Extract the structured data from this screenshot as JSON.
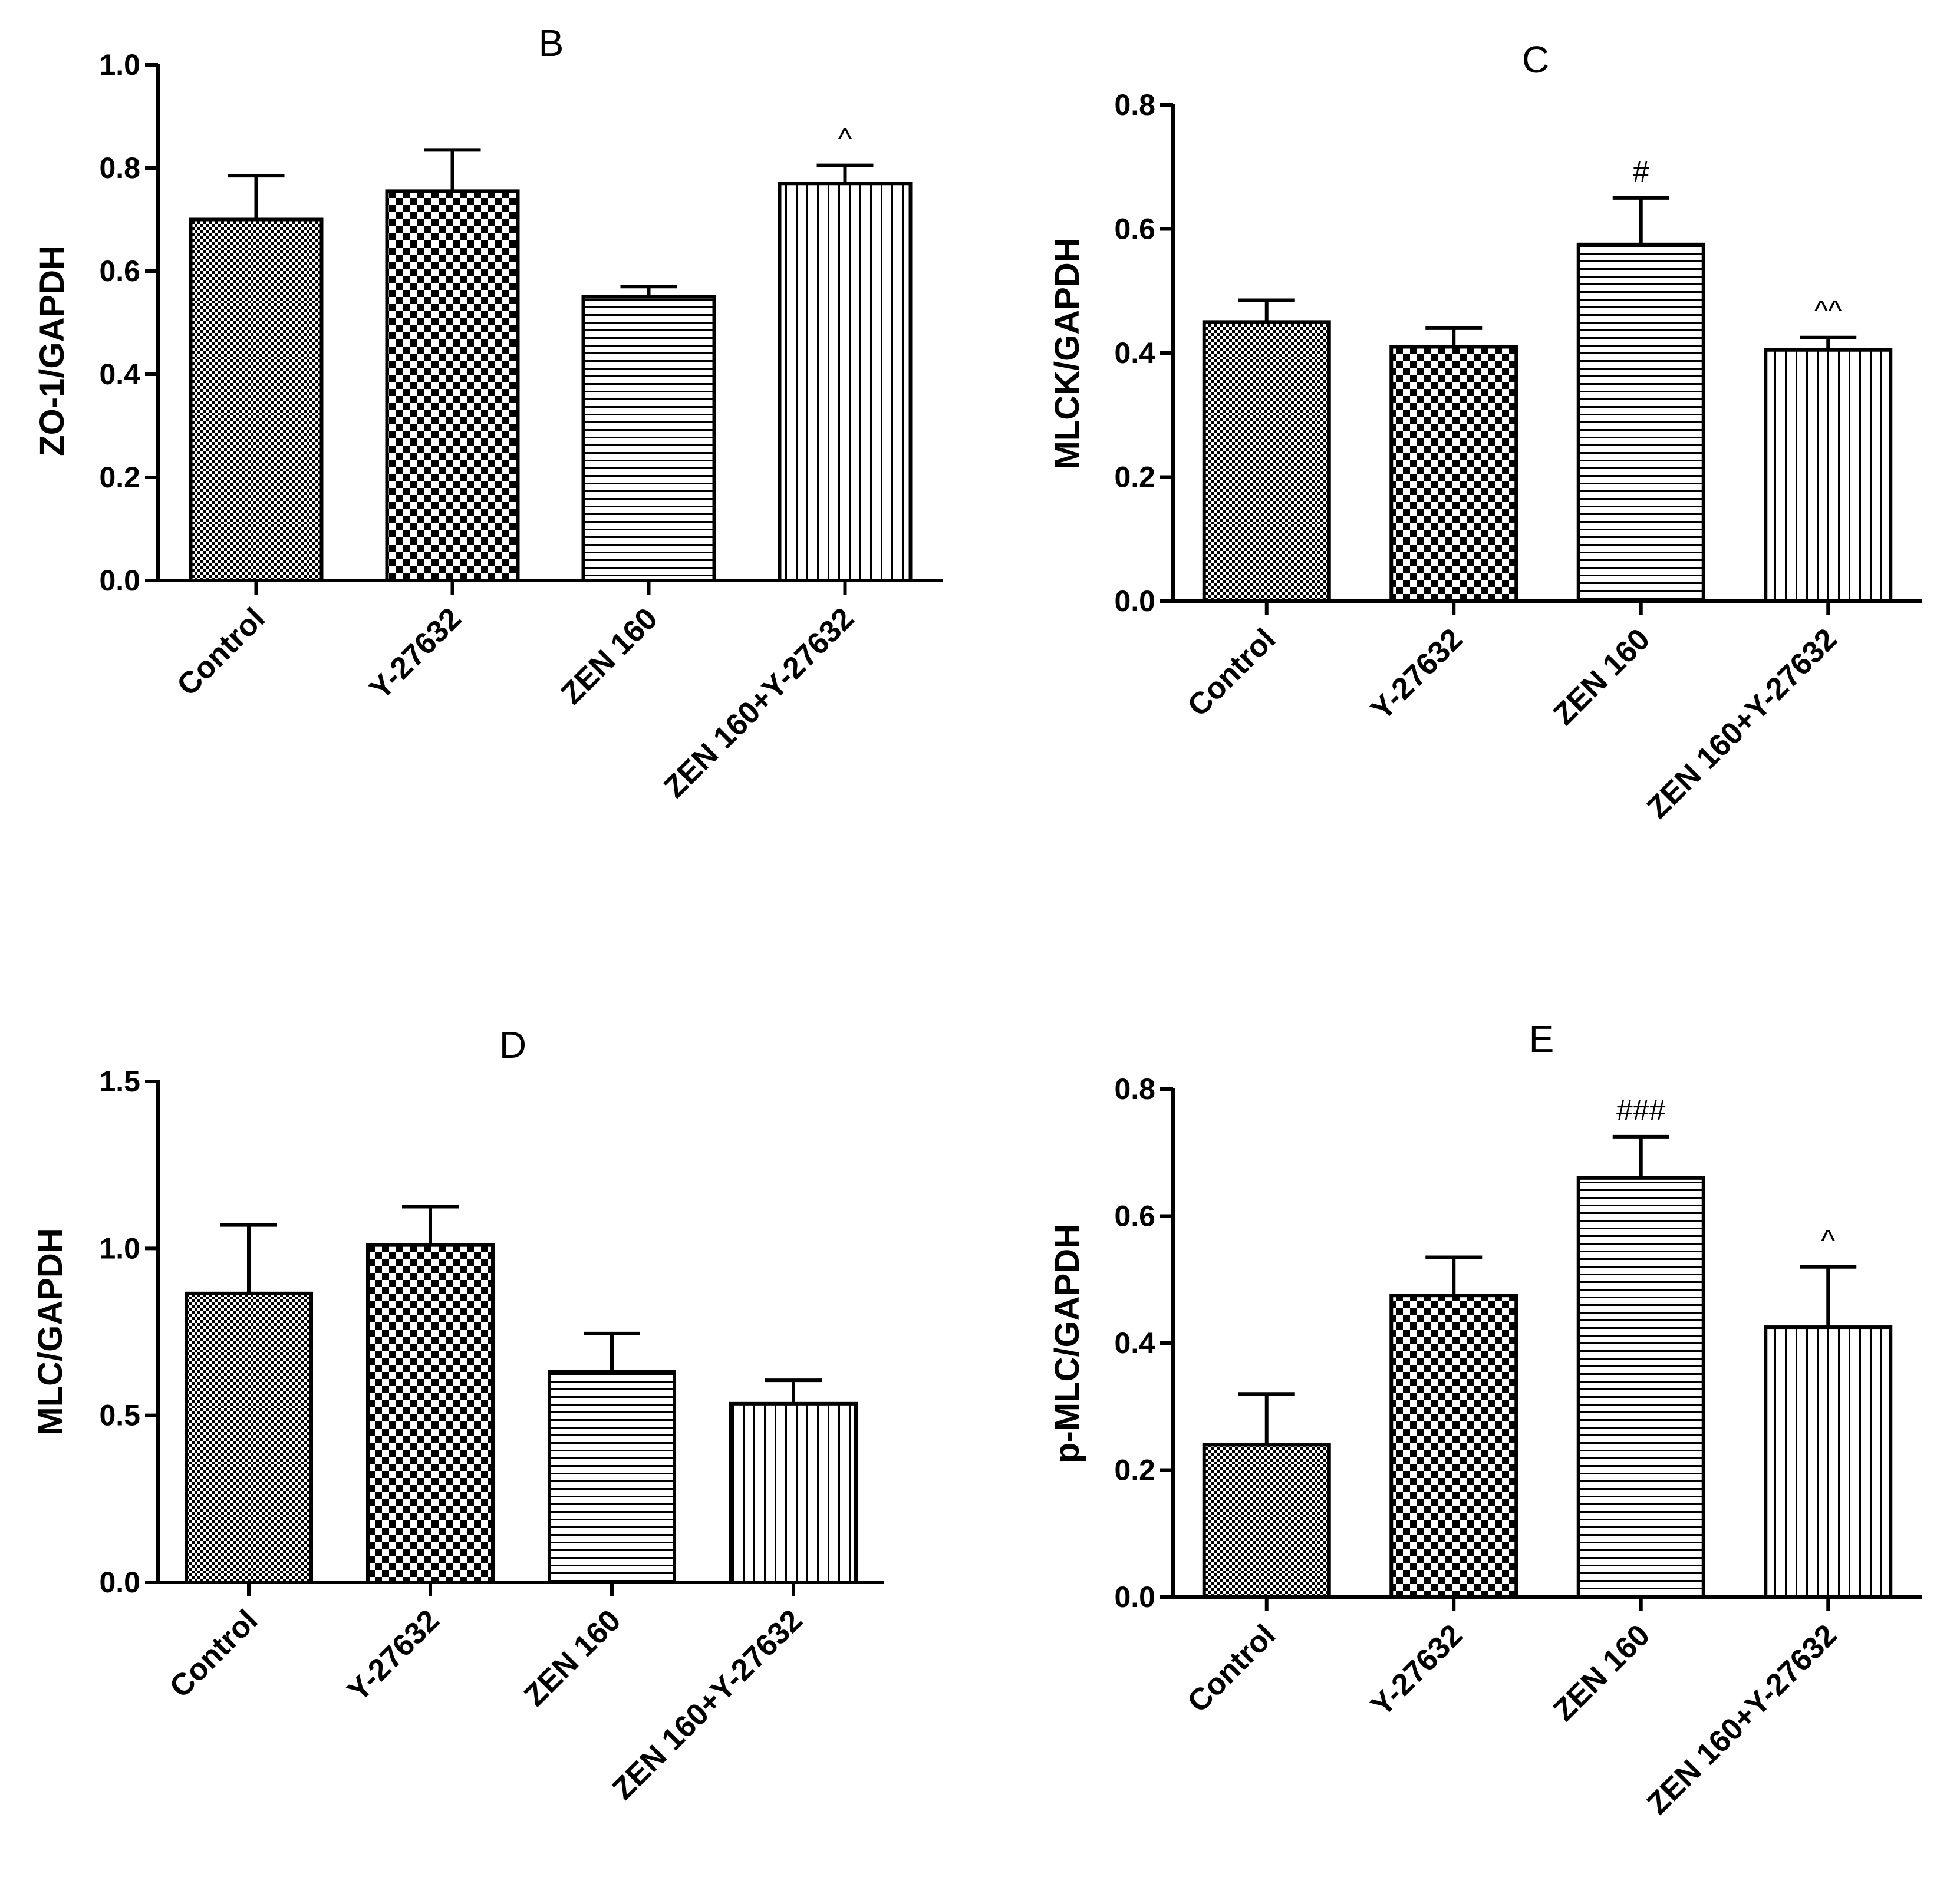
{
  "chart_data": [
    {
      "panel": "B",
      "type": "bar",
      "title": "B",
      "ylabel": "ZO-1/GAPDH",
      "xlabel": "",
      "categories": [
        "Control",
        "Y-27632",
        "ZEN 160",
        "ZEN 160+Y-27632"
      ],
      "values": [
        0.7,
        0.755,
        0.55,
        0.77
      ],
      "errors": [
        0.085,
        0.08,
        0.02,
        0.035
      ],
      "annotations": [
        "",
        "",
        "",
        "^"
      ],
      "patterns": [
        "fine-check",
        "check",
        "hlines",
        "vlines"
      ],
      "ylim": [
        0,
        1.0
      ],
      "yticks": [
        0.0,
        0.2,
        0.4,
        0.6,
        0.8,
        1.0
      ],
      "ytick_labels": [
        "0.0",
        "0.2",
        "0.4",
        "0.6",
        "0.8",
        "1.0"
      ],
      "grid": false
    },
    {
      "panel": "C",
      "type": "bar",
      "title": "C",
      "ylabel": "MLCK/GAPDH",
      "xlabel": "",
      "categories": [
        "Control",
        "Y-27632",
        "ZEN 160",
        "ZEN 160+Y-27632"
      ],
      "values": [
        0.45,
        0.41,
        0.575,
        0.405
      ],
      "errors": [
        0.035,
        0.03,
        0.075,
        0.02
      ],
      "annotations": [
        "",
        "",
        "#",
        "^^"
      ],
      "patterns": [
        "fine-check",
        "check",
        "hlines",
        "vlines"
      ],
      "ylim": [
        0,
        0.8
      ],
      "yticks": [
        0.0,
        0.2,
        0.4,
        0.6,
        0.8
      ],
      "ytick_labels": [
        "0.0",
        "0.2",
        "0.4",
        "0.6",
        "0.8"
      ],
      "grid": false
    },
    {
      "panel": "D",
      "type": "bar",
      "title": "D",
      "ylabel": "MLC/GAPDH",
      "xlabel": "",
      "categories": [
        "Control",
        "Y-27632",
        "ZEN 160",
        "ZEN 160+Y-27632"
      ],
      "values": [
        0.865,
        1.01,
        0.63,
        0.535
      ],
      "errors": [
        0.205,
        0.115,
        0.115,
        0.07
      ],
      "annotations": [
        "",
        "",
        "",
        ""
      ],
      "patterns": [
        "fine-check",
        "check",
        "hlines",
        "vlines"
      ],
      "ylim": [
        0,
        1.5
      ],
      "yticks": [
        0.0,
        0.5,
        1.0,
        1.5
      ],
      "ytick_labels": [
        "0.0",
        "0.5",
        "1.0",
        "1.5"
      ],
      "grid": false
    },
    {
      "panel": "E",
      "type": "bar",
      "title": "E",
      "ylabel": "p-MLC/GAPDH",
      "xlabel": "",
      "categories": [
        "Control",
        "Y-27632",
        "ZEN 160",
        "ZEN 160+Y-27632"
      ],
      "values": [
        0.24,
        0.475,
        0.66,
        0.425
      ],
      "errors": [
        0.08,
        0.06,
        0.065,
        0.095
      ],
      "annotations": [
        "",
        "",
        "###",
        "^"
      ],
      "patterns": [
        "fine-check",
        "check",
        "hlines",
        "vlines"
      ],
      "ylim": [
        0,
        0.8
      ],
      "yticks": [
        0.0,
        0.2,
        0.4,
        0.6,
        0.8
      ],
      "ytick_labels": [
        "0.0",
        "0.2",
        "0.4",
        "0.6",
        "0.8"
      ],
      "grid": false
    }
  ]
}
